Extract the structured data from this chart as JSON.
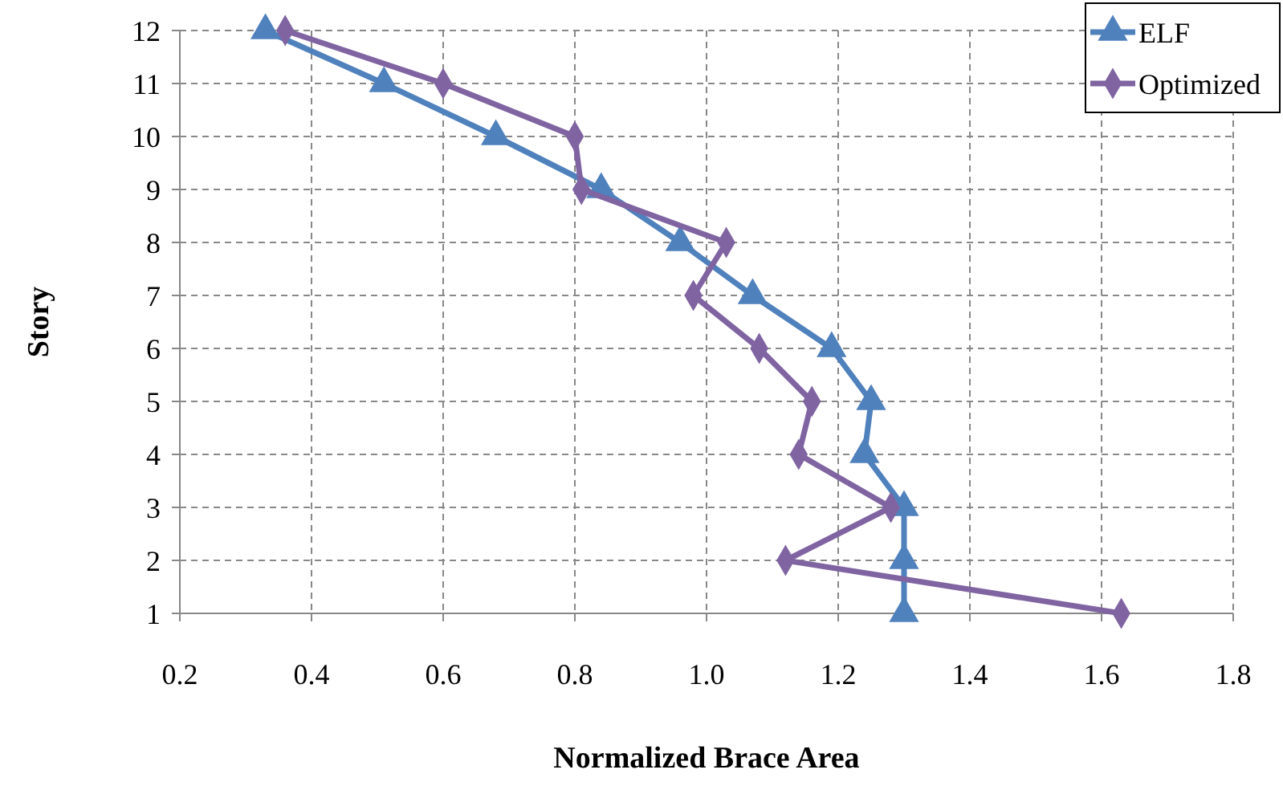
{
  "chart_data": {
    "type": "line",
    "xlabel": "Normalized Brace Area",
    "ylabel": "Story",
    "xlim": [
      0.2,
      1.8
    ],
    "xticks": [
      {
        "value": 0.2,
        "label": "0.2"
      },
      {
        "value": 0.4,
        "label": "0.4"
      },
      {
        "value": 0.6,
        "label": "0.6"
      },
      {
        "value": 0.8,
        "label": "0.8"
      },
      {
        "value": 1.0,
        "label": "1.0"
      },
      {
        "value": 1.2,
        "label": "1.2"
      },
      {
        "value": 1.4,
        "label": "1.4"
      },
      {
        "value": 1.6,
        "label": "1.6"
      },
      {
        "value": 1.8,
        "label": "1.8"
      }
    ],
    "ylim": [
      1,
      12
    ],
    "yticks": [
      1,
      2,
      3,
      4,
      5,
      6,
      7,
      8,
      9,
      10,
      11,
      12
    ],
    "grid": true,
    "legend": "top right",
    "line_style": "solid",
    "series": [
      {
        "name": "ELF",
        "color": "#4f81bd",
        "marker": "triangle",
        "x": [
          0.33,
          0.51,
          0.68,
          0.84,
          0.96,
          1.07,
          1.19,
          1.25,
          1.24,
          1.3,
          1.3,
          1.3
        ],
        "values": [
          12,
          11,
          10,
          9,
          8,
          7,
          6,
          5,
          4,
          3,
          2,
          1
        ]
      },
      {
        "name": "Optimized",
        "color": "#8064a2",
        "marker": "diamond",
        "x": [
          0.36,
          0.6,
          0.8,
          0.81,
          1.03,
          0.98,
          1.08,
          1.16,
          1.14,
          1.28,
          1.12,
          1.63
        ],
        "values": [
          12,
          11,
          10,
          9,
          8,
          7,
          6,
          5,
          4,
          3,
          2,
          1
        ]
      }
    ]
  }
}
